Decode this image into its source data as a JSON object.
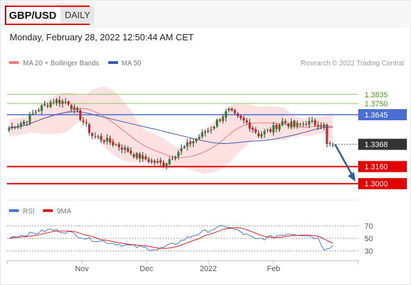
{
  "header": {
    "symbol": "GBP/USD",
    "timeframe": "DAILY",
    "timestamp": "Monday, February 28, 2022 12:50:44 AM CET"
  },
  "legend": {
    "ma20": "MA 20 + Bollinger Bands",
    "ma50": "MA 50",
    "copyright": "Research © 2022 Trading Central",
    "rsi": "RSI",
    "ma9": "9MA"
  },
  "colors": {
    "bull": "#2e7d32",
    "bear": "#c62828",
    "band": "#fcd7d7",
    "ma20": "#f07a7a",
    "ma50": "#3b5ba8",
    "pivot": "#4a6fd1",
    "support": "#e00000",
    "resistance": "#8fc46b",
    "arrow": "#2f5d9c",
    "rsi": "#4a78d6",
    "rsi_ma": "#d62020"
  },
  "chart_data": {
    "type": "candlestick",
    "price_axis": {
      "min": 1.28,
      "max": 1.41
    },
    "x_ticks": [
      "Nov",
      "Dec",
      "2022",
      "Feb"
    ],
    "levels": [
      {
        "value": 1.3835,
        "label": "1.3835",
        "kind": "resistance"
      },
      {
        "value": 1.375,
        "label": "1.3750",
        "kind": "resistance"
      },
      {
        "value": 1.3645,
        "label": "1.3645",
        "kind": "pivot"
      },
      {
        "value": 1.3368,
        "label": "1.3368",
        "kind": "last"
      },
      {
        "value": 1.316,
        "label": "1.3160",
        "kind": "support"
      },
      {
        "value": 1.3,
        "label": "1.3000",
        "kind": "support"
      }
    ],
    "anchors": [
      {
        "i": 0,
        "p": 1.352
      },
      {
        "i": 5,
        "p": 1.358
      },
      {
        "i": 10,
        "p": 1.37
      },
      {
        "i": 15,
        "p": 1.378
      },
      {
        "i": 20,
        "p": 1.376
      },
      {
        "i": 24,
        "p": 1.362
      },
      {
        "i": 28,
        "p": 1.345
      },
      {
        "i": 33,
        "p": 1.34
      },
      {
        "i": 38,
        "p": 1.334
      },
      {
        "i": 43,
        "p": 1.326
      },
      {
        "i": 48,
        "p": 1.321
      },
      {
        "i": 52,
        "p": 1.318
      },
      {
        "i": 56,
        "p": 1.328
      },
      {
        "i": 60,
        "p": 1.336
      },
      {
        "i": 64,
        "p": 1.344
      },
      {
        "i": 68,
        "p": 1.352
      },
      {
        "i": 72,
        "p": 1.364
      },
      {
        "i": 74,
        "p": 1.368
      },
      {
        "i": 77,
        "p": 1.361
      },
      {
        "i": 80,
        "p": 1.357
      },
      {
        "i": 84,
        "p": 1.346
      },
      {
        "i": 88,
        "p": 1.35
      },
      {
        "i": 92,
        "p": 1.358
      },
      {
        "i": 96,
        "p": 1.354
      },
      {
        "i": 100,
        "p": 1.357
      },
      {
        "i": 104,
        "p": 1.356
      },
      {
        "i": 106,
        "p": 1.354
      },
      {
        "i": 107,
        "p": 1.336
      },
      {
        "i": 109,
        "p": 1.3368
      }
    ],
    "rsi": {
      "levels": [
        70,
        50,
        30
      ],
      "anchors": [
        {
          "i": 0,
          "v": 52
        },
        {
          "i": 8,
          "v": 58
        },
        {
          "i": 14,
          "v": 64
        },
        {
          "i": 20,
          "v": 60
        },
        {
          "i": 26,
          "v": 50
        },
        {
          "i": 32,
          "v": 45
        },
        {
          "i": 38,
          "v": 40
        },
        {
          "i": 44,
          "v": 36
        },
        {
          "i": 50,
          "v": 32
        },
        {
          "i": 56,
          "v": 42
        },
        {
          "i": 62,
          "v": 55
        },
        {
          "i": 68,
          "v": 64
        },
        {
          "i": 73,
          "v": 70
        },
        {
          "i": 78,
          "v": 60
        },
        {
          "i": 83,
          "v": 48
        },
        {
          "i": 88,
          "v": 52
        },
        {
          "i": 94,
          "v": 58
        },
        {
          "i": 100,
          "v": 56
        },
        {
          "i": 104,
          "v": 50
        },
        {
          "i": 106,
          "v": 34
        },
        {
          "i": 109,
          "v": 38
        }
      ]
    }
  }
}
